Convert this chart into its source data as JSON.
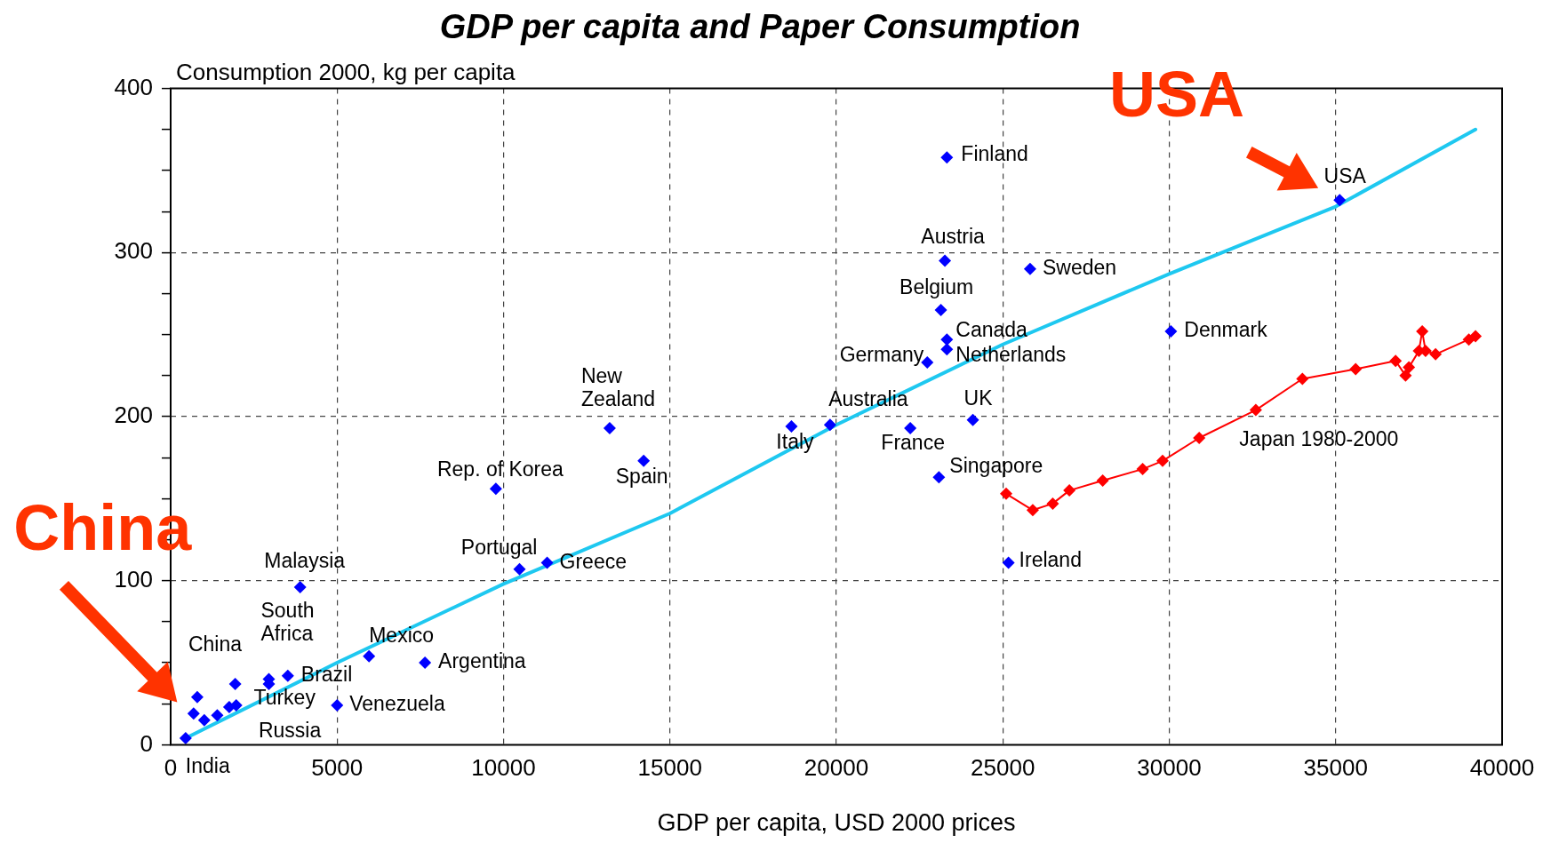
{
  "chart_data": {
    "type": "scatter",
    "title": "GDP per capita and Paper Consumption",
    "ylabel": "Consumption 2000, kg per capita",
    "xlabel": "GDP per capita, USD 2000 prices",
    "xlim": [
      0,
      40000
    ],
    "xticks": [
      0,
      5000,
      10000,
      15000,
      20000,
      25000,
      30000,
      35000,
      40000
    ],
    "ylim": [
      0,
      400
    ],
    "yticks": [
      0,
      {
        "value": 25,
        "label": null
      },
      {
        "value": 50,
        "label": null
      },
      {
        "value": 75,
        "label": null
      },
      100,
      {
        "value": 125,
        "label": null
      },
      {
        "value": 150,
        "label": null
      },
      {
        "value": 175,
        "label": null
      },
      200,
      {
        "value": 225,
        "label": null
      },
      {
        "value": 250,
        "label": null
      },
      {
        "value": 275,
        "label": null
      },
      300,
      {
        "value": 325,
        "label": null
      },
      {
        "value": 350,
        "label": null
      },
      {
        "value": 375,
        "label": null
      },
      400
    ],
    "grid": true,
    "legend": false,
    "marker": "diamond",
    "series": [
      {
        "type": "line",
        "color": "#1ec8f0",
        "marker": "none",
        "x": [
          450,
          5000,
          10000,
          15000,
          20000,
          25000,
          30000,
          35000,
          39200
        ],
        "values": [
          4,
          50,
          98,
          141,
          195,
          244,
          287,
          328,
          375
        ]
      },
      {
        "type": "scatter",
        "color": "#0000ff",
        "x": [
          450,
          800,
          690,
          1010,
          1400,
          1760,
          1970,
          1940,
          2950,
          2950,
          3520,
          5000,
          5960,
          7640,
          3890,
          10480,
          11310,
          9770,
          13190,
          14210,
          18650,
          19810,
          22220,
          23080,
          24100,
          22730,
          23320,
          23320,
          23140,
          23260,
          23320,
          25820,
          30050,
          35120,
          25170
        ],
        "values": [
          4,
          29,
          19,
          15,
          18,
          23,
          24,
          37,
          40,
          37,
          42,
          24,
          54,
          50,
          96,
          107,
          111,
          156,
          193,
          173,
          194,
          195,
          193,
          163,
          198,
          233,
          241,
          247,
          265,
          295,
          358,
          290,
          252,
          332,
          111
        ]
      },
      {
        "type": "line",
        "name": "Japan 1980-2000",
        "color": "#ff0000",
        "x": [
          25100,
          25900,
          26500,
          27000,
          28000,
          29200,
          29800,
          30900,
          32600,
          34000,
          35600,
          36800,
          37100,
          37200,
          37500,
          37600,
          37700,
          38000,
          39000,
          39200
        ],
        "values": [
          153,
          143,
          147,
          155,
          161,
          168,
          173,
          187,
          204,
          223,
          229,
          234,
          225,
          230,
          240,
          252,
          240,
          238,
          247,
          249
        ]
      }
    ],
    "annotations": [
      "China",
      "USA",
      {
        "text": "India",
        "x": 450,
        "y": 4
      },
      {
        "text": "China",
        "x": 800,
        "y": 29
      },
      {
        "text": "Russia",
        "x": 1760,
        "y": 23
      },
      {
        "text": "South Africa",
        "x": 2950,
        "y": 40
      },
      {
        "text": "Turkey",
        "x": 2950,
        "y": 37
      },
      {
        "text": "Brazil",
        "x": 3520,
        "y": 42
      },
      {
        "text": "Venezuela",
        "x": 5000,
        "y": 24
      },
      {
        "text": "Mexico",
        "x": 5960,
        "y": 54
      },
      {
        "text": "Argentina",
        "x": 7640,
        "y": 50
      },
      {
        "text": "Malaysia",
        "x": 3890,
        "y": 96
      },
      {
        "text": "Portugal",
        "x": 10480,
        "y": 107
      },
      {
        "text": "Greece",
        "x": 11310,
        "y": 111
      },
      {
        "text": "Rep. of Korea",
        "x": 9770,
        "y": 156
      },
      {
        "text": "New Zealand",
        "x": 13190,
        "y": 193
      },
      {
        "text": "Spain",
        "x": 14210,
        "y": 173
      },
      {
        "text": "Italy",
        "x": 18650,
        "y": 194
      },
      {
        "text": "Australia",
        "x": 19810,
        "y": 195
      },
      {
        "text": "France",
        "x": 22220,
        "y": 193
      },
      {
        "text": "Singapore",
        "x": 23080,
        "y": 163
      },
      {
        "text": "UK",
        "x": 24100,
        "y": 198
      },
      {
        "text": "Germany",
        "x": 22730,
        "y": 233
      },
      {
        "text": "Netherlands",
        "x": 23320,
        "y": 241
      },
      {
        "text": "Canada",
        "x": 23320,
        "y": 247
      },
      {
        "text": "Belgium",
        "x": 23140,
        "y": 265
      },
      {
        "text": "Austria",
        "x": 23260,
        "y": 295
      },
      {
        "text": "Finland",
        "x": 23320,
        "y": 358
      },
      {
        "text": "Sweden",
        "x": 25820,
        "y": 290
      },
      {
        "text": "Denmark",
        "x": 30050,
        "y": 252
      },
      {
        "text": "USA",
        "x": 35120,
        "y": 332
      },
      {
        "text": "Ireland",
        "x": 25170,
        "y": 111
      }
    ]
  }
}
